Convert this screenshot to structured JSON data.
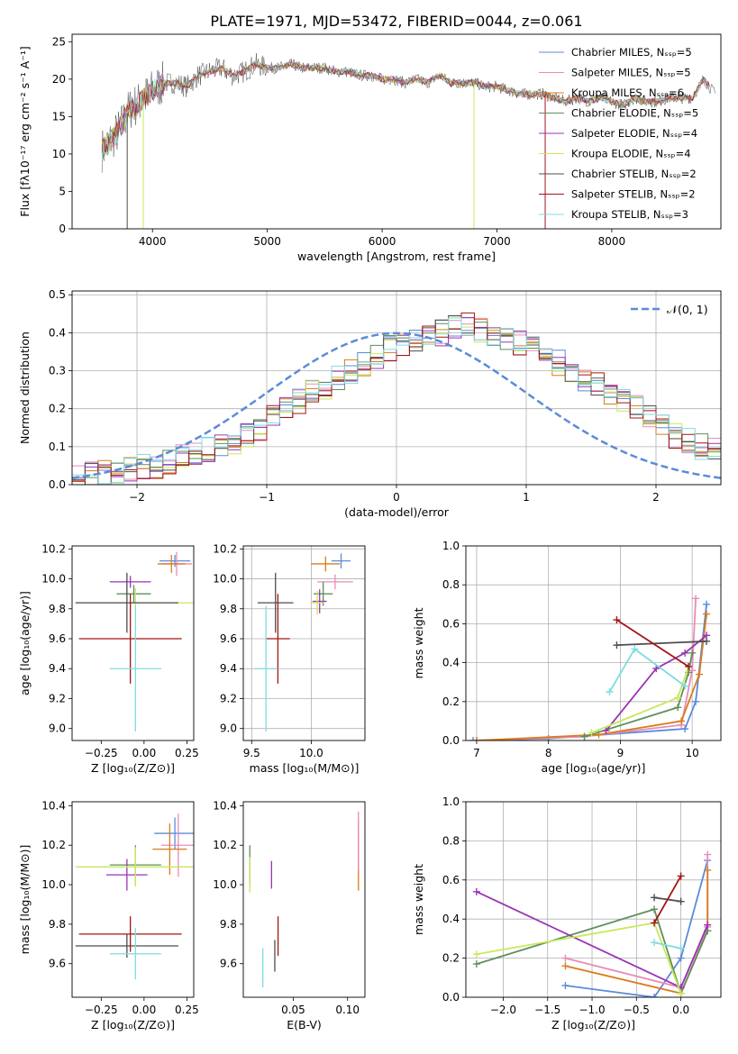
{
  "figure": {
    "title": "PLATE=1971, MJD=53472, FIBERID=0044, z=0.061"
  },
  "colors": {
    "chabrier_miles": "#5b8bd9",
    "salpeter_miles": "#e88cb8",
    "kroupa_miles": "#d97c1e",
    "chabrier_elodie": "#5e8f5e",
    "salpeter_elodie": "#9a34b5",
    "kroupa_elodie": "#c9e85a",
    "chabrier_stelib": "#4d4d4d",
    "salpeter_stelib": "#a31515",
    "kroupa_stelib": "#7fdce0",
    "gaussian": "#5b8bd9",
    "grid": "#b0b0b0"
  },
  "chart_data": [
    {
      "id": "spectrum",
      "type": "line",
      "title": "PLATE=1971, MJD=53472, FIBERID=0044, z=0.061",
      "xlabel": "wavelength [Angstrom, rest frame]",
      "ylabel": "Flux [fλ10⁻¹⁷ erg cm⁻² s⁻¹ A⁻¹]",
      "xlim": [
        3300,
        8950
      ],
      "ylim": [
        0,
        26
      ],
      "xticks": [
        4000,
        5000,
        6000,
        7000,
        8000
      ],
      "yticks": [
        0,
        5,
        10,
        15,
        20,
        25
      ],
      "grid": false,
      "legend_position": "top-right",
      "legend": [
        {
          "label": "Chabrier MILES, Nₛₛₚ=5",
          "color_key": "chabrier_miles"
        },
        {
          "label": "Salpeter MILES, Nₛₛₚ=5",
          "color_key": "salpeter_miles"
        },
        {
          "label": "Kroupa MILES, Nₛₛₚ=6",
          "color_key": "kroupa_miles"
        },
        {
          "label": "Chabrier ELODIE, Nₛₛₚ=5",
          "color_key": "chabrier_elodie"
        },
        {
          "label": "Salpeter ELODIE, Nₛₛₚ=4",
          "color_key": "salpeter_elodie"
        },
        {
          "label": "Kroupa ELODIE, Nₛₛₚ=4",
          "color_key": "kroupa_elodie"
        },
        {
          "label": "Chabrier STELIB, Nₛₛₚ=2",
          "color_key": "chabrier_stelib"
        },
        {
          "label": "Salpeter STELIB, Nₛₛₚ=2",
          "color_key": "salpeter_stelib"
        },
        {
          "label": "Kroupa STELIB, Nₛₛₚ=3",
          "color_key": "kroupa_stelib"
        }
      ],
      "data_color_key": "chabrier_stelib",
      "data_x": [
        3560,
        3700,
        3800,
        3900,
        4000,
        4100,
        4200,
        4300,
        4400,
        4500,
        4600,
        4700,
        4800,
        4900,
        5000,
        5100,
        5200,
        5300,
        5400,
        5500,
        5600,
        5700,
        5800,
        5900,
        6000,
        6100,
        6200,
        6300,
        6400,
        6500,
        6600,
        6700,
        6800,
        6900,
        7000,
        7100,
        7200,
        7300,
        7400,
        7500,
        7600,
        7700,
        7800,
        7900,
        8000,
        8100,
        8200,
        8300,
        8400,
        8500,
        8600,
        8700,
        8800,
        8900
      ],
      "data_y": [
        10.5,
        13.0,
        16.0,
        17.0,
        18.5,
        19.5,
        19.5,
        19.0,
        20.5,
        21.0,
        21.5,
        20.5,
        21.0,
        22.0,
        21.5,
        21.5,
        22.0,
        21.5,
        21.5,
        21.5,
        21.0,
        21.0,
        20.5,
        20.5,
        20.0,
        20.0,
        19.5,
        20.0,
        19.5,
        20.5,
        19.5,
        19.5,
        19.5,
        19.0,
        19.0,
        18.5,
        18.0,
        18.0,
        18.0,
        17.5,
        17.0,
        17.5,
        17.0,
        17.5,
        17.0,
        16.5,
        17.5,
        17.0,
        17.0,
        17.5,
        17.5,
        17.5,
        20.0,
        18.0
      ],
      "vertical_lines": [
        {
          "x": 3780,
          "y_to": 0,
          "color_key": "chabrier_stelib"
        },
        {
          "x": 3920,
          "y_to": 0,
          "color_key": "kroupa_elodie"
        },
        {
          "x": 6800,
          "y_to": 0,
          "color_key": "kroupa_elodie"
        },
        {
          "x": 7420,
          "y_to": 0,
          "color_key": "salpeter_stelib"
        }
      ]
    },
    {
      "id": "residuals",
      "type": "histogram",
      "xlabel": "(data-model)/error",
      "ylabel": "Normed distribution",
      "xlim": [
        -2.5,
        2.5
      ],
      "ylim": [
        0,
        0.51
      ],
      "xticks": [
        -2,
        -1,
        0,
        1,
        2
      ],
      "xticklabels": [
        "−2",
        "−1",
        "0",
        "1",
        "2"
      ],
      "yticks": [
        0,
        0.1,
        0.2,
        0.3,
        0.4,
        0.5
      ],
      "yticklabels": [
        "0.0",
        "0.1",
        "0.2",
        "0.3",
        "0.4",
        "0.5"
      ],
      "grid": true,
      "legend_position": "top-right",
      "legend": [
        {
          "label": "𝒩(0, 1)",
          "color_key": "gaussian",
          "dashed": true
        }
      ],
      "bin_edges_start": -2.5,
      "bin_width": 0.1,
      "histogram_values_typical": [
        0.02,
        0.025,
        0.03,
        0.035,
        0.04,
        0.045,
        0.05,
        0.06,
        0.07,
        0.08,
        0.09,
        0.1,
        0.115,
        0.13,
        0.15,
        0.175,
        0.2,
        0.22,
        0.24,
        0.26,
        0.28,
        0.3,
        0.32,
        0.34,
        0.36,
        0.37,
        0.385,
        0.39,
        0.4,
        0.41,
        0.42,
        0.41,
        0.4,
        0.385,
        0.37,
        0.36,
        0.34,
        0.32,
        0.3,
        0.28,
        0.26,
        0.24,
        0.22,
        0.2,
        0.175,
        0.15,
        0.13,
        0.115,
        0.1,
        0.09
      ],
      "gaussian": {
        "mean": 0,
        "sigma": 1
      }
    },
    {
      "id": "age_vs_Z",
      "type": "scatter",
      "xlabel": "Z [log₁₀(Z/Z⊙)]",
      "ylabel": "age  [log₁₀(age/yr)]",
      "xlim": [
        -0.42,
        0.29
      ],
      "ylim": [
        8.92,
        10.22
      ],
      "xticks": [
        -0.25,
        0.0,
        0.25
      ],
      "xticklabels": [
        "−0.25",
        "0.00",
        "0.25"
      ],
      "yticks": [
        9.0,
        9.2,
        9.4,
        9.6,
        9.8,
        10.0,
        10.2
      ],
      "yticklabels": [
        "9.0",
        "9.2",
        "9.4",
        "9.6",
        "9.8",
        "10.0",
        "10.2"
      ],
      "grid": false,
      "points": [
        {
          "color_key": "chabrier_miles",
          "x": 0.18,
          "xerr": 0.09,
          "y": 10.12,
          "yerr": 0.04
        },
        {
          "color_key": "salpeter_miles",
          "x": 0.19,
          "xerr": 0.09,
          "y": 10.1,
          "yerr": 0.08
        },
        {
          "color_key": "kroupa_miles",
          "x": 0.16,
          "xerr": 0.08,
          "y": 10.1,
          "yerr": 0.06
        },
        {
          "color_key": "chabrier_elodie",
          "x": -0.06,
          "xerr": 0.1,
          "y": 9.9,
          "yerr": 0.06
        },
        {
          "color_key": "salpeter_elodie",
          "x": -0.08,
          "xerr": 0.12,
          "y": 9.98,
          "yerr": 0.04
        },
        {
          "color_key": "kroupa_elodie",
          "x": -0.05,
          "xerr": 0.35,
          "y": 9.84,
          "yerr": 0.1
        },
        {
          "color_key": "chabrier_stelib",
          "x": -0.1,
          "xerr": 0.3,
          "y": 9.84,
          "yerr": 0.2
        },
        {
          "color_key": "salpeter_stelib",
          "x": -0.08,
          "xerr": 0.3,
          "y": 9.6,
          "yerr": 0.3
        },
        {
          "color_key": "kroupa_stelib",
          "x": -0.05,
          "xerr": 0.15,
          "y": 9.4,
          "yerr": 0.42
        }
      ]
    },
    {
      "id": "age_vs_mass",
      "type": "scatter",
      "xlabel": "mass [log₁₀(M/M⊙)]",
      "ylabel": "",
      "xlim": [
        9.43,
        10.45
      ],
      "ylim": [
        8.92,
        10.22
      ],
      "xticks": [
        9.5,
        10.0
      ],
      "xticklabels": [
        "9.5",
        "10.0"
      ],
      "yticks": [
        9.0,
        9.2,
        9.4,
        9.6,
        9.8,
        10.0,
        10.2
      ],
      "yticklabels": [
        "9.0",
        "9.2",
        "9.4",
        "9.6",
        "9.8",
        "10.0",
        "10.2"
      ],
      "grid": true,
      "points": [
        {
          "color_key": "chabrier_miles",
          "x": 10.25,
          "xerr": 0.08,
          "y": 10.12,
          "yerr": 0.05
        },
        {
          "color_key": "salpeter_miles",
          "x": 10.2,
          "xerr": 0.15,
          "y": 9.98,
          "yerr": 0.05
        },
        {
          "color_key": "kroupa_miles",
          "x": 10.12,
          "xerr": 0.12,
          "y": 10.1,
          "yerr": 0.05
        },
        {
          "color_key": "chabrier_elodie",
          "x": 10.1,
          "xerr": 0.08,
          "y": 9.9,
          "yerr": 0.08
        },
        {
          "color_key": "salpeter_elodie",
          "x": 10.07,
          "xerr": 0.06,
          "y": 9.85,
          "yerr": 0.08
        },
        {
          "color_key": "kroupa_elodie",
          "x": 10.05,
          "xerr": 0.06,
          "y": 9.84,
          "yerr": 0.08
        },
        {
          "color_key": "chabrier_stelib",
          "x": 9.7,
          "xerr": 0.15,
          "y": 9.84,
          "yerr": 0.2
        },
        {
          "color_key": "salpeter_stelib",
          "x": 9.72,
          "xerr": 0.1,
          "y": 9.6,
          "yerr": 0.3
        },
        {
          "color_key": "kroupa_stelib",
          "x": 9.62,
          "xerr": 0.1,
          "y": 9.4,
          "yerr": 0.42
        }
      ]
    },
    {
      "id": "weight_vs_age",
      "type": "line",
      "xlabel": "age  [log₁₀(age/yr)]",
      "ylabel": "mass weight",
      "xlim": [
        6.85,
        10.4
      ],
      "ylim": [
        0,
        1.0
      ],
      "xticks": [
        7,
        8,
        9,
        10
      ],
      "yticks": [
        0.0,
        0.2,
        0.4,
        0.6,
        0.8,
        1.0
      ],
      "yticklabels": [
        "0.0",
        "0.2",
        "0.4",
        "0.6",
        "0.8",
        "1.0"
      ],
      "grid": true,
      "series": [
        {
          "color_key": "chabrier_miles",
          "x": [
            6.95,
            8.0,
            9.9,
            10.05,
            10.2
          ],
          "y": [
            0.0,
            0.01,
            0.06,
            0.2,
            0.7
          ]
        },
        {
          "color_key": "salpeter_miles",
          "x": [
            7.0,
            8.5,
            9.85,
            10.0,
            10.05
          ],
          "y": [
            0.0,
            0.02,
            0.08,
            0.36,
            0.73
          ]
        },
        {
          "color_key": "kroupa_miles",
          "x": [
            7.0,
            8.7,
            9.85,
            10.1,
            10.2
          ],
          "y": [
            0.0,
            0.03,
            0.1,
            0.34,
            0.65
          ]
        },
        {
          "color_key": "chabrier_elodie",
          "x": [
            8.5,
            9.8,
            9.95,
            10.0
          ],
          "y": [
            0.02,
            0.17,
            0.35,
            0.45
          ]
        },
        {
          "color_key": "salpeter_elodie",
          "x": [
            8.8,
            9.5,
            9.9,
            10.2
          ],
          "y": [
            0.05,
            0.37,
            0.45,
            0.54
          ]
        },
        {
          "color_key": "kroupa_elodie",
          "x": [
            8.6,
            9.8,
            9.95
          ],
          "y": [
            0.04,
            0.22,
            0.38
          ]
        },
        {
          "color_key": "chabrier_stelib",
          "x": [
            8.95,
            10.2
          ],
          "y": [
            0.49,
            0.51
          ]
        },
        {
          "color_key": "salpeter_stelib",
          "x": [
            8.95,
            9.95
          ],
          "y": [
            0.62,
            0.38
          ]
        },
        {
          "color_key": "kroupa_stelib",
          "x": [
            8.85,
            9.2,
            9.9
          ],
          "y": [
            0.25,
            0.47,
            0.28
          ]
        }
      ]
    },
    {
      "id": "mass_vs_Z",
      "type": "scatter",
      "xlabel": "Z [log₁₀(Z/Z⊙)]",
      "ylabel": "mass [log₁₀(M/M⊙)]",
      "xlim": [
        -0.42,
        0.29
      ],
      "ylim": [
        9.43,
        10.42
      ],
      "xticks": [
        -0.25,
        0.0,
        0.25
      ],
      "xticklabels": [
        "−0.25",
        "0.00",
        "0.25"
      ],
      "yticks": [
        9.6,
        9.8,
        10.0,
        10.2,
        10.4
      ],
      "yticklabels": [
        "9.6",
        "9.8",
        "10.0",
        "10.2",
        "10.4"
      ],
      "grid": false,
      "points": [
        {
          "color_key": "chabrier_miles",
          "x": 0.18,
          "xerr": 0.12,
          "y": 10.26,
          "yerr": 0.08
        },
        {
          "color_key": "salpeter_miles",
          "x": 0.2,
          "xerr": 0.1,
          "y": 10.2,
          "yerr": 0.16
        },
        {
          "color_key": "kroupa_miles",
          "x": 0.15,
          "xerr": 0.1,
          "y": 10.18,
          "yerr": 0.13
        },
        {
          "color_key": "chabrier_elodie",
          "x": -0.05,
          "xerr": 0.15,
          "y": 10.1,
          "yerr": 0.1
        },
        {
          "color_key": "salpeter_elodie",
          "x": -0.1,
          "xerr": 0.12,
          "y": 10.05,
          "yerr": 0.08
        },
        {
          "color_key": "kroupa_elodie",
          "x": -0.05,
          "xerr": 0.35,
          "y": 10.09,
          "yerr": 0.1
        },
        {
          "color_key": "chabrier_stelib",
          "x": -0.1,
          "xerr": 0.3,
          "y": 9.69,
          "yerr": 0.06
        },
        {
          "color_key": "salpeter_stelib",
          "x": -0.08,
          "xerr": 0.3,
          "y": 9.75,
          "yerr": 0.09
        },
        {
          "color_key": "kroupa_stelib",
          "x": -0.05,
          "xerr": 0.15,
          "y": 9.65,
          "yerr": 0.13
        }
      ]
    },
    {
      "id": "mass_vs_EBV",
      "type": "scatter",
      "xlabel": "E(B-V)",
      "ylabel": "",
      "xlim": [
        0.004,
        0.116
      ],
      "ylim": [
        9.43,
        10.42
      ],
      "xticks": [
        0.05,
        0.1
      ],
      "xticklabels": [
        "0.05",
        "0.10"
      ],
      "yticks": [
        9.6,
        9.8,
        10.0,
        10.2,
        10.4
      ],
      "yticklabels": [
        "9.6",
        "9.8",
        "10.0",
        "10.2",
        "10.4"
      ],
      "grid": false,
      "points": [
        {
          "color_key": "chabrier_elodie",
          "x": 0.01,
          "xerr": 0,
          "y": 10.1,
          "yerr": 0.1
        },
        {
          "color_key": "kroupa_elodie",
          "x": 0.01,
          "xerr": 0,
          "y": 10.05,
          "yerr": 0.09
        },
        {
          "color_key": "salpeter_elodie",
          "x": 0.03,
          "xerr": 0,
          "y": 10.05,
          "yerr": 0.07
        },
        {
          "color_key": "kroupa_miles",
          "x": 0.11,
          "xerr": 0,
          "y": 10.15,
          "yerr": 0.18
        },
        {
          "color_key": "salpeter_miles",
          "x": 0.11,
          "xerr": 0,
          "y": 10.22,
          "yerr": 0.15
        },
        {
          "color_key": "chabrier_stelib",
          "x": 0.033,
          "xerr": 0,
          "y": 9.64,
          "yerr": 0.08
        },
        {
          "color_key": "salpeter_stelib",
          "x": 0.036,
          "xerr": 0,
          "y": 9.74,
          "yerr": 0.1
        },
        {
          "color_key": "kroupa_stelib",
          "x": 0.022,
          "xerr": 0,
          "y": 9.58,
          "yerr": 0.1
        }
      ]
    },
    {
      "id": "weight_vs_Z",
      "type": "line",
      "xlabel": "Z [log₁₀(Z/Z⊙)]",
      "ylabel": "mass weight",
      "xlim": [
        -2.42,
        0.45
      ],
      "ylim": [
        0,
        1.0
      ],
      "xticks": [
        -2.0,
        -1.5,
        -1.0,
        -0.5,
        0.0
      ],
      "xticklabels": [
        "−2.0",
        "−1.5",
        "−1.0",
        "−0.5",
        "0.0"
      ],
      "yticks": [
        0.0,
        0.2,
        0.4,
        0.6,
        0.8,
        1.0
      ],
      "yticklabels": [
        "0.0",
        "0.2",
        "0.4",
        "0.6",
        "0.8",
        "1.0"
      ],
      "grid": true,
      "series": [
        {
          "color_key": "chabrier_miles",
          "x": [
            -1.3,
            -0.3,
            0.0,
            0.3
          ],
          "y": [
            0.06,
            0.0,
            0.2,
            0.7
          ]
        },
        {
          "color_key": "salpeter_miles",
          "x": [
            -1.3,
            0.0,
            0.3,
            0.3
          ],
          "y": [
            0.2,
            0.05,
            0.36,
            0.73
          ]
        },
        {
          "color_key": "kroupa_miles",
          "x": [
            -1.3,
            0.0,
            0.3,
            0.3
          ],
          "y": [
            0.16,
            0.02,
            0.34,
            0.65
          ]
        },
        {
          "color_key": "chabrier_elodie",
          "x": [
            -2.3,
            -0.3,
            0.0,
            0.3
          ],
          "y": [
            0.17,
            0.45,
            0.02,
            0.34
          ]
        },
        {
          "color_key": "salpeter_elodie",
          "x": [
            -2.3,
            0.0,
            0.3
          ],
          "y": [
            0.54,
            0.05,
            0.37
          ]
        },
        {
          "color_key": "kroupa_elodie",
          "x": [
            -2.3,
            -0.3,
            0.0
          ],
          "y": [
            0.22,
            0.38,
            0.02
          ]
        },
        {
          "color_key": "chabrier_stelib",
          "x": [
            -0.3,
            0.0
          ],
          "y": [
            0.51,
            0.49
          ]
        },
        {
          "color_key": "salpeter_stelib",
          "x": [
            -0.3,
            0.0
          ],
          "y": [
            0.38,
            0.62
          ]
        },
        {
          "color_key": "kroupa_stelib",
          "x": [
            -0.3,
            0.0
          ],
          "y": [
            0.28,
            0.25
          ]
        }
      ]
    }
  ]
}
